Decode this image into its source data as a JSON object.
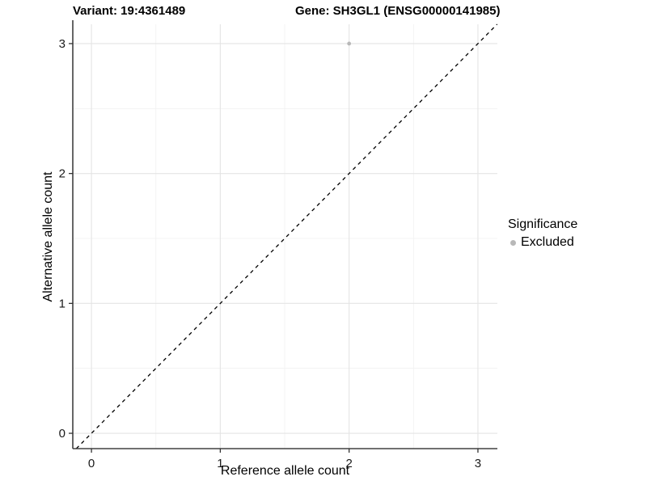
{
  "chart_data": {
    "type": "scatter",
    "title_left": "Variant: 19:4361489",
    "title_right": "Gene: SH3GL1 (ENSG00000141985)",
    "xlabel": "Reference allele count",
    "ylabel": "Alternative allele count",
    "xlim": [
      -0.145,
      3.151
    ],
    "ylim": [
      -0.118,
      3.149
    ],
    "x_ticks": [
      0,
      1,
      2,
      3
    ],
    "y_ticks": [
      0,
      1,
      2,
      3
    ],
    "x_minor_ticks": [
      0.5,
      1.5,
      2.5
    ],
    "y_minor_ticks": [
      0.5,
      1.5,
      2.5
    ],
    "grid": true,
    "series": [
      {
        "name": "Excluded",
        "color": "#b8b8b8",
        "points": [
          {
            "x": 2,
            "y": 3
          }
        ]
      }
    ],
    "reference_line": {
      "type": "identity",
      "style": "dashed",
      "color": "#000000"
    },
    "legend": {
      "title": "Significance",
      "position": "right",
      "items": [
        {
          "label": "Excluded",
          "color": "#b8b8b8"
        }
      ]
    },
    "colors": {
      "grid_major": "#e4e4e4",
      "grid_minor": "#f1f1f1",
      "axis": "#404040",
      "tick": "#333333",
      "text": "#1a1a1a"
    }
  }
}
